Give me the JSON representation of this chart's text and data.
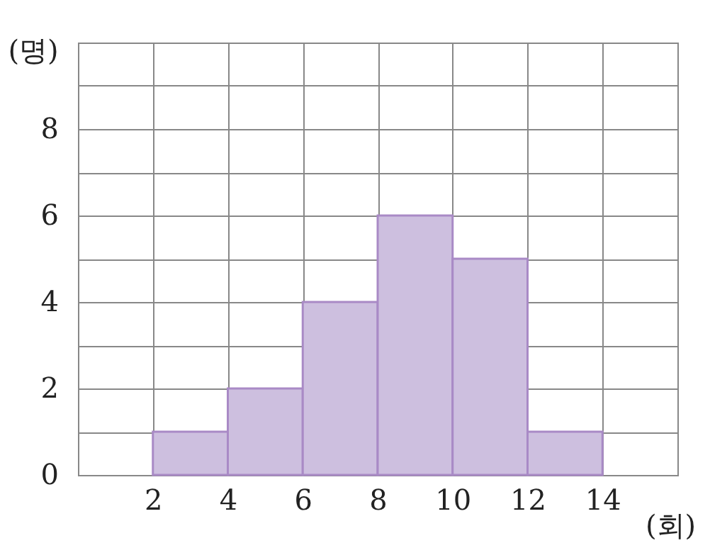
{
  "chart_data": {
    "type": "histogram",
    "xlabel": "(회)",
    "ylabel": "(명)",
    "bins": [
      2,
      4,
      6,
      8,
      10,
      12,
      14
    ],
    "values": [
      1,
      2,
      4,
      6,
      5,
      1
    ],
    "color": "#cdbfdf",
    "xlim": [
      0,
      16
    ],
    "ylim": [
      0,
      10
    ],
    "xticks": [
      {
        "value": 0,
        "label": null
      },
      2,
      4,
      6,
      8,
      10,
      12,
      14,
      {
        "value": 16,
        "label": null
      }
    ],
    "yticks": [
      0,
      {
        "value": 1,
        "label": null
      },
      2,
      {
        "value": 3,
        "label": null
      },
      4,
      {
        "value": 5,
        "label": null
      },
      6,
      {
        "value": 7,
        "label": null
      },
      8,
      {
        "value": 9,
        "label": null
      },
      {
        "value": 10,
        "label": null
      }
    ],
    "grid": true
  }
}
